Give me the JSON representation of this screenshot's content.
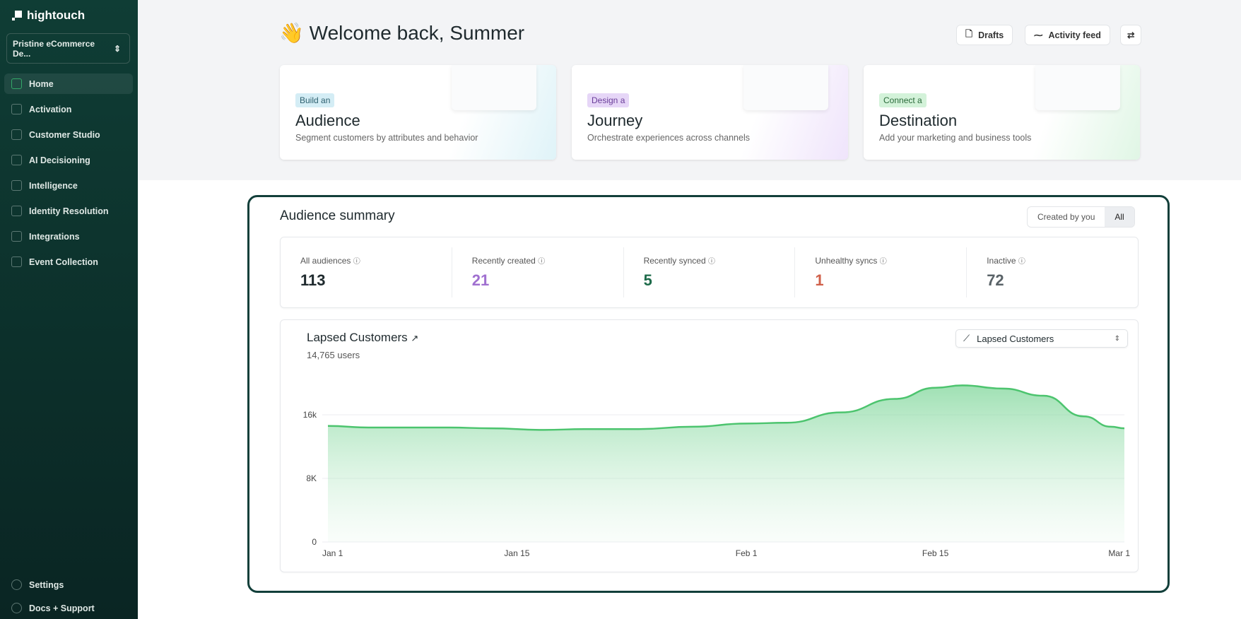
{
  "sidebar": {
    "brand": "hightouch",
    "workspace": "Pristine eCommerce De...",
    "items": [
      {
        "label": "Home",
        "icon": "home-icon",
        "active": true
      },
      {
        "label": "Activation",
        "icon": "activation-icon"
      },
      {
        "label": "Customer Studio",
        "icon": "customer-studio-icon"
      },
      {
        "label": "AI Decisioning",
        "icon": "ai-decisioning-icon"
      },
      {
        "label": "Intelligence",
        "icon": "intelligence-icon"
      },
      {
        "label": "Identity Resolution",
        "icon": "identity-resolution-icon"
      },
      {
        "label": "Integrations",
        "icon": "integrations-icon"
      },
      {
        "label": "Event Collection",
        "icon": "event-collection-icon"
      }
    ],
    "bottom": [
      {
        "label": "Settings",
        "icon": "gear-icon"
      },
      {
        "label": "Docs + Support",
        "icon": "help-icon"
      }
    ]
  },
  "header": {
    "emoji": "👋",
    "title": "Welcome back, Summer",
    "drafts": "Drafts",
    "activity": "Activity feed"
  },
  "cards": [
    {
      "tag": "Build an",
      "title": "Audience",
      "desc": "Segment customers by attributes and behavior",
      "tag_bg": "#d4edf5",
      "tag_fg": "#2d5f6e"
    },
    {
      "tag": "Design a",
      "title": "Journey",
      "desc": "Orchestrate experiences across channels",
      "tag_bg": "#e6d6f7",
      "tag_fg": "#6a3d99"
    },
    {
      "tag": "Connect a",
      "title": "Destination",
      "desc": "Add your marketing and business tools",
      "tag_bg": "#d3f2d9",
      "tag_fg": "#2a6a3a"
    }
  ],
  "summary": {
    "title": "Audience summary",
    "filter": [
      "Created by you",
      "All"
    ],
    "filter_selected": "All",
    "stats": [
      {
        "label": "All audiences",
        "value": "113",
        "color": "#1f2a2e"
      },
      {
        "label": "Recently created",
        "value": "21",
        "color": "#a070d0"
      },
      {
        "label": "Recently synced",
        "value": "5",
        "color": "#1e6b4a"
      },
      {
        "label": "Unhealthy syncs",
        "value": "1",
        "color": "#d0604a"
      },
      {
        "label": "Inactive",
        "value": "72",
        "color": "#5a6368"
      }
    ]
  },
  "chart_panel": {
    "title": "Lapsed Customers",
    "subtitle": "14,765 users",
    "selector": "Lapsed Customers"
  },
  "chart_data": {
    "type": "area",
    "color": "#4cc46e",
    "ylim": [
      0,
      22000
    ],
    "yticks": [
      {
        "v": 0,
        "label": "0"
      },
      {
        "v": 8000,
        "label": "8K"
      },
      {
        "v": 16000,
        "label": "16k"
      }
    ],
    "xticks": [
      "Jan 1",
      "Jan 15",
      "Feb 1",
      "Feb 15",
      "Mar 1"
    ],
    "grid": true,
    "x": [
      "Jan 1",
      "Jan 4",
      "Jan 10",
      "Jan 13",
      "Jan 17",
      "Jan 20",
      "Jan 24",
      "Jan 28",
      "Feb 1",
      "Feb 4",
      "Feb 8",
      "Feb 12",
      "Feb 15",
      "Feb 17",
      "Feb 20",
      "Feb 23",
      "Feb 26",
      "Feb 28",
      "Mar 1"
    ],
    "values": [
      14600,
      14400,
      14400,
      14300,
      14100,
      14200,
      14200,
      14500,
      14900,
      15000,
      16300,
      18000,
      19400,
      19700,
      19300,
      18400,
      15800,
      14500,
      14300
    ]
  }
}
